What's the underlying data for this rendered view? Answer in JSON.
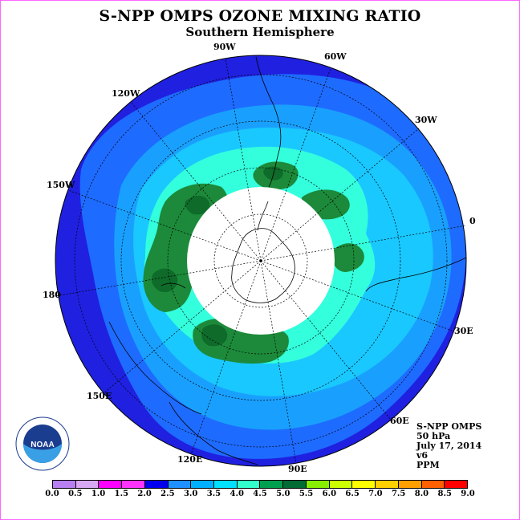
{
  "title": "S-NPP OMPS OZONE MIXING RATIO",
  "subtitle": "Southern Hemisphere",
  "longitude_labels": [
    "90W",
    "60W",
    "30W",
    "0",
    "30E",
    "60E",
    "90E",
    "120E",
    "150E",
    "180",
    "150W",
    "120W"
  ],
  "info": {
    "line1": "S-NPP OMPS",
    "line2": "50 hPa",
    "line3": "July 17, 2014",
    "line4": "v6",
    "line5": "PPM"
  },
  "logo_text": "NOAA",
  "colorbar": {
    "ticks": [
      "0.0",
      "0.5",
      "1.0",
      "1.5",
      "2.0",
      "2.5",
      "3.0",
      "3.5",
      "4.0",
      "4.5",
      "5.0",
      "5.5",
      "6.0",
      "6.5",
      "7.0",
      "7.5",
      "8.0",
      "8.5",
      "9.0"
    ],
    "colors": [
      "#b77ff0",
      "#d9a8f4",
      "#ff00ff",
      "#ff33ff",
      "#0000ee",
      "#1e90ff",
      "#00b0ff",
      "#00e0ff",
      "#33ffcc",
      "#00a050",
      "#006b33",
      "#88ee00",
      "#ccff00",
      "#ffff00",
      "#ffd000",
      "#ffa000",
      "#ff6000",
      "#ff0000",
      "#8b4513"
    ]
  },
  "legend_entries": {
    "ozone_2_0": "#2020e0",
    "ozone_2_5": "#1e6bff",
    "ozone_3_0": "#19a0ff",
    "ozone_3_5": "#19c8ff",
    "ozone_4_0": "#33ffdd",
    "ozone_4_5": "#1c8a3a",
    "ozone_5_0": "#0f6b2a"
  }
}
